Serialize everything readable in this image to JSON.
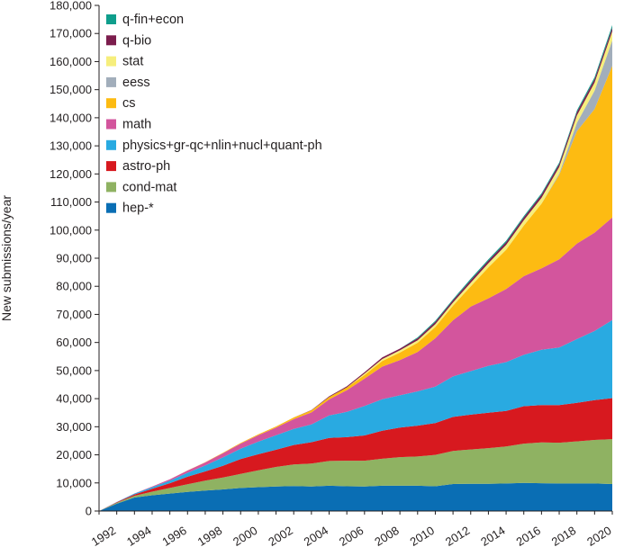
{
  "chart_data": {
    "type": "area",
    "stacked": true,
    "title": "",
    "xlabel": "",
    "ylabel": "New submissions/year",
    "xlim": [
      1991,
      2020
    ],
    "ylim": [
      0,
      180000
    ],
    "x_ticks": [
      1992,
      1994,
      1996,
      1998,
      2000,
      2002,
      2004,
      2006,
      2008,
      2010,
      2012,
      2014,
      2016,
      2018,
      2020
    ],
    "x_tick_labels": [
      "1992",
      "1994",
      "1996",
      "1998",
      "2000",
      "2002",
      "2004",
      "2006",
      "2008",
      "2010",
      "2012",
      "2014",
      "2016",
      "2018",
      "2020"
    ],
    "y_ticks": [
      0,
      10000,
      20000,
      30000,
      40000,
      50000,
      60000,
      70000,
      80000,
      90000,
      100000,
      110000,
      120000,
      130000,
      140000,
      150000,
      160000,
      170000,
      180000
    ],
    "y_tick_labels": [
      "0",
      "10,000",
      "20,000",
      "30,000",
      "40,000",
      "50,000",
      "60,000",
      "70,000",
      "80,000",
      "90,000",
      "100,000",
      "110,000",
      "120,000",
      "130,000",
      "140,000",
      "150,000",
      "160,000",
      "170,000",
      "180,000"
    ],
    "legend_position": "top-left",
    "x": [
      1991,
      1992,
      1993,
      1994,
      1995,
      1996,
      1997,
      1998,
      1999,
      2000,
      2001,
      2002,
      2003,
      2004,
      2005,
      2006,
      2007,
      2008,
      2009,
      2010,
      2011,
      2012,
      2013,
      2014,
      2015,
      2016,
      2017,
      2018,
      2019,
      2020
    ],
    "series": [
      {
        "name": "hep-*",
        "color": "#0a6eb4",
        "values": [
          0,
          2600,
          4800,
          5600,
          6200,
          6800,
          7300,
          7700,
          8200,
          8500,
          8700,
          8900,
          8700,
          9000,
          8800,
          8700,
          9000,
          9000,
          9000,
          8800,
          9600,
          9700,
          9700,
          9800,
          10000,
          9900,
          9800,
          9800,
          9800,
          9600
        ]
      },
      {
        "name": "cond-mat",
        "color": "#8fb262",
        "values": [
          0,
          300,
          600,
          1300,
          2000,
          2700,
          3500,
          4200,
          5000,
          6000,
          7000,
          7700,
          8200,
          8800,
          9100,
          9200,
          9600,
          10200,
          10400,
          11200,
          11800,
          12200,
          12700,
          13200,
          14000,
          14500,
          14500,
          15000,
          15500,
          16000
        ]
      },
      {
        "name": "astro-ph",
        "color": "#d7191f",
        "values": [
          0,
          200,
          500,
          1000,
          1700,
          2700,
          3300,
          4200,
          5300,
          5700,
          6100,
          6900,
          7600,
          8200,
          8400,
          9000,
          10000,
          10500,
          11000,
          11300,
          12100,
          12400,
          12600,
          12600,
          13300,
          13300,
          13400,
          13700,
          14200,
          14600
        ]
      },
      {
        "name": "physics+gr-qc+nlin+nucl+quant-ph",
        "color": "#29aae1",
        "values": [
          0,
          100,
          300,
          600,
          900,
          1400,
          2100,
          3000,
          3700,
          4500,
          5200,
          5700,
          6300,
          8000,
          9000,
          10500,
          11200,
          11500,
          12200,
          13000,
          14400,
          15500,
          16700,
          17400,
          18300,
          19700,
          20500,
          22700,
          24600,
          27800
        ]
      },
      {
        "name": "math",
        "color": "#d3559d",
        "values": [
          0,
          20,
          50,
          200,
          500,
          800,
          1100,
          1500,
          1800,
          2300,
          2700,
          3500,
          4300,
          5700,
          7700,
          9700,
          11600,
          12500,
          14000,
          17200,
          20000,
          23000,
          24000,
          26000,
          28000,
          29000,
          31400,
          34000,
          35000,
          36500
        ]
      },
      {
        "name": "cs",
        "color": "#fdbb12",
        "values": [
          0,
          0,
          0,
          10,
          20,
          50,
          80,
          150,
          200,
          300,
          400,
          600,
          750,
          850,
          1000,
          1300,
          2000,
          2700,
          3300,
          4000,
          5200,
          7200,
          11000,
          14000,
          18000,
          23000,
          30000,
          40000,
          44000,
          54000
        ]
      },
      {
        "name": "eess",
        "color": "#a2aebb",
        "values": [
          0,
          0,
          0,
          0,
          0,
          0,
          0,
          0,
          0,
          0,
          0,
          0,
          0,
          0,
          0,
          0,
          0,
          0,
          0,
          0,
          0,
          0,
          0,
          0,
          0,
          0,
          500,
          3000,
          6500,
          9000
        ]
      },
      {
        "name": "stat",
        "color": "#f6ee7c",
        "values": [
          0,
          0,
          0,
          0,
          0,
          0,
          0,
          0,
          0,
          0,
          0,
          0,
          0,
          0,
          0,
          500,
          700,
          800,
          900,
          1000,
          1100,
          1300,
          1500,
          1700,
          1900,
          2100,
          2300,
          2600,
          2900,
          3300
        ]
      },
      {
        "name": "q-bio",
        "color": "#7c1d4d",
        "values": [
          0,
          0,
          0,
          0,
          0,
          0,
          0,
          0,
          0,
          0,
          0,
          0,
          100,
          300,
          400,
          500,
          600,
          600,
          700,
          800,
          800,
          900,
          900,
          1000,
          1000,
          1100,
          1100,
          1200,
          1200,
          1300
        ]
      },
      {
        "name": "q-fin+econ",
        "color": "#0f9e8c",
        "values": [
          0,
          0,
          0,
          0,
          0,
          0,
          0,
          0,
          0,
          0,
          0,
          0,
          0,
          0,
          0,
          0,
          0,
          0,
          300,
          400,
          400,
          500,
          500,
          500,
          500,
          500,
          500,
          600,
          700,
          900
        ]
      }
    ]
  }
}
